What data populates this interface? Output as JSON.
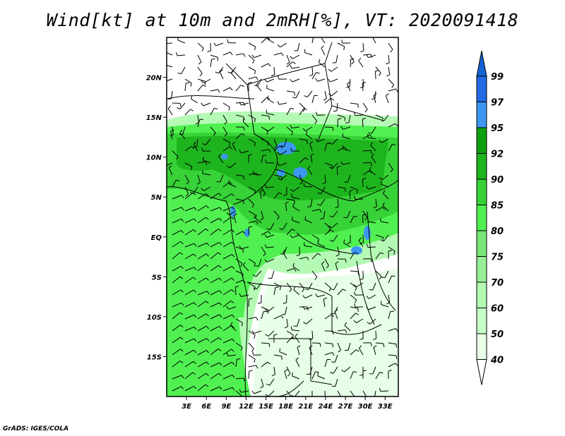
{
  "title": "Wind[kt] at 10m and 2mRH[%], VT: 2020091418",
  "credit": "GrADS: IGES/COLA",
  "map": {
    "lon_range": [
      0,
      35
    ],
    "lat_range": [
      -20,
      25
    ],
    "lon_ticks": [
      "3E",
      "6E",
      "9E",
      "12E",
      "15E",
      "18E",
      "21E",
      "24E",
      "27E",
      "30E",
      "33E"
    ],
    "lon_values": [
      3,
      6,
      9,
      12,
      15,
      18,
      21,
      24,
      27,
      30,
      33
    ],
    "lat_ticks": [
      "20N",
      "15N",
      "10N",
      "5N",
      "EQ",
      "5S",
      "10S",
      "15S"
    ],
    "lat_values": [
      20,
      15,
      10,
      5,
      0,
      -5,
      -10,
      -15
    ]
  },
  "colorbar": {
    "labels": [
      "40",
      "50",
      "60",
      "70",
      "75",
      "80",
      "85",
      "90",
      "92",
      "95",
      "97",
      "99"
    ],
    "colors": [
      "#ffffff",
      "#e6ffe6",
      "#c8ffc8",
      "#b4fab4",
      "#96f096",
      "#78e678",
      "#50f050",
      "#37d237",
      "#1eb41e",
      "#0fa00f",
      "#3c96f0",
      "#2369e6",
      "#1464d2"
    ]
  }
}
